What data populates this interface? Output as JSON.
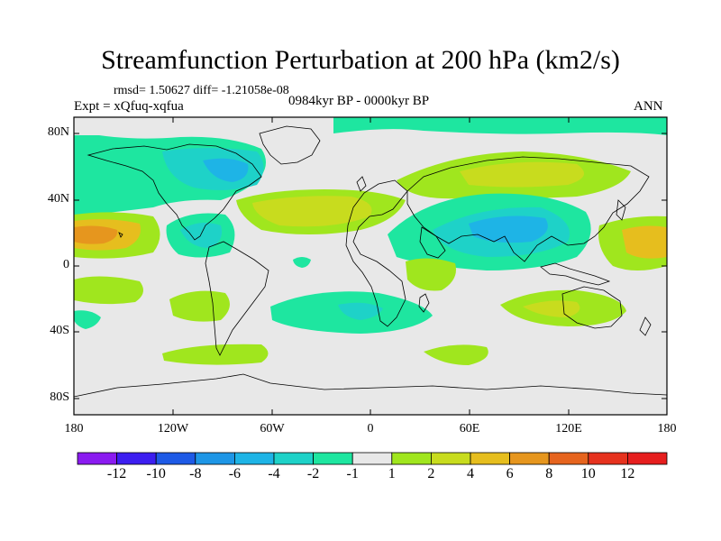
{
  "figure": {
    "title": "Streamfunction Perturbation at 200 hPa (km2/s)",
    "stats": "rmsd= 1.50627  diff= -1.21058e-08",
    "experiment": "Expt = xQfuq-xqfua",
    "period": "0984kyr BP - 0000kyr BP",
    "season": "ANN"
  },
  "axes": {
    "lat_labels": [
      "80N",
      "40N",
      "0",
      "40S",
      "80S"
    ],
    "lon_labels": [
      "180",
      "120W",
      "60W",
      "0",
      "60E",
      "120E",
      "180"
    ]
  },
  "colorbar": {
    "labels": [
      "-12",
      "-10",
      "-8",
      "-6",
      "-4",
      "-2",
      "-1",
      "1",
      "2",
      "4",
      "6",
      "8",
      "10",
      "12"
    ],
    "colors": [
      "#8a1bf0",
      "#3c1ef0",
      "#1e5ae6",
      "#1e96e6",
      "#1eb4e6",
      "#1ed2c8",
      "#1ee6a0",
      "#e8e8e8",
      "#a0e61e",
      "#c8dc1e",
      "#e6be1e",
      "#e6961e",
      "#e6641e",
      "#e6321e",
      "#e61e1e"
    ]
  },
  "field_colors": {
    "neutral": "#e8e8e8",
    "neg1": "#1ee6a0",
    "neg2": "#1ed2c8",
    "neg3": "#1eb4e6",
    "pos1": "#a0e61e",
    "pos2": "#c8dc1e",
    "pos3": "#e6be1e",
    "pos4": "#e6961e"
  }
}
